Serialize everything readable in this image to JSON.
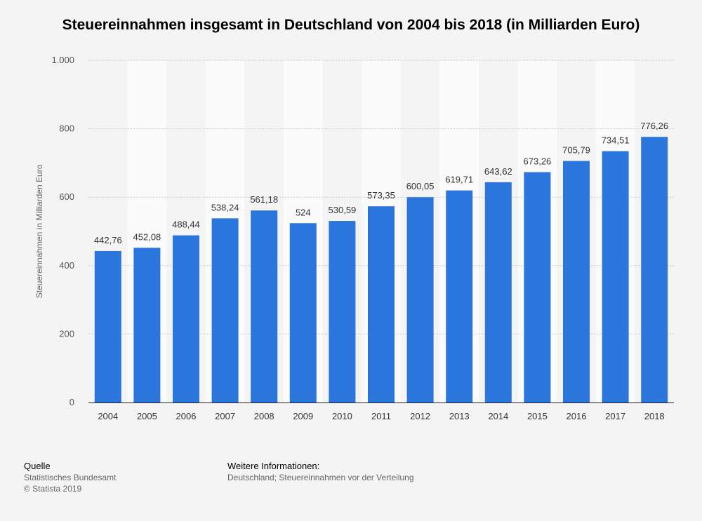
{
  "chart_data": {
    "type": "bar",
    "title": "Steuereinnahmen insgesamt in Deutschland von 2004 bis 2018 (in Milliarden Euro)",
    "ylabel": "Steuereinnahmen in Milliarden Euro",
    "xlabel": "",
    "categories": [
      "2004",
      "2005",
      "2006",
      "2007",
      "2008",
      "2009",
      "2010",
      "2011",
      "2012",
      "2013",
      "2014",
      "2015",
      "2016",
      "2017",
      "2018"
    ],
    "values": [
      442.76,
      452.08,
      488.44,
      538.24,
      561.18,
      524,
      530.59,
      573.35,
      600.05,
      619.71,
      643.62,
      673.26,
      705.79,
      734.51,
      776.26
    ],
    "value_labels": [
      "442,76",
      "452,08",
      "488,44",
      "538,24",
      "561,18",
      "524",
      "530,59",
      "573,35",
      "600,05",
      "619,71",
      "643,62",
      "673,26",
      "705,79",
      "734,51",
      "776,26"
    ],
    "ylim": [
      0,
      1000
    ],
    "yticks": [
      0,
      200,
      400,
      600,
      800,
      1000
    ],
    "ytick_labels": [
      "0",
      "200",
      "400",
      "600",
      "800",
      "1.000"
    ],
    "grid": true,
    "bar_color": "#2a76dd"
  },
  "footer": {
    "source_heading": "Quelle",
    "source": "Statistisches Bundesamt",
    "copyright": "© Statista 2019",
    "info_heading": "Weitere Informationen:",
    "info": "Deutschland; Steuereinnahmen vor der Verteilung"
  }
}
